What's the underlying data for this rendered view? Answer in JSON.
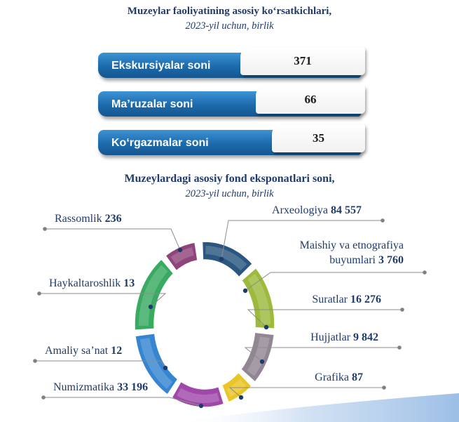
{
  "header": {
    "title": "Muzeylar faoliyatining asosiy koʻrsatkichlari,",
    "subtitle": "2023-yil uchun, birlik"
  },
  "stats": [
    {
      "label": "Ekskursiyalar soni",
      "value": "371"
    },
    {
      "label": "Ma’ruzalar soni",
      "value": "66"
    },
    {
      "label": "Koʻrgazmalar soni",
      "value": "35"
    }
  ],
  "chart_data": {
    "type": "pie",
    "title": "Muzeylardagi asosiy fond eksponatlari soni,",
    "subtitle": "2023-yil uchun, birlik",
    "slices": [
      {
        "name": "Arxeologiya",
        "value": 84557,
        "label": "84 557",
        "color": "#1f4e79"
      },
      {
        "name": "Maishiy va etnografiya buyumlari",
        "value": 3760,
        "label": "3 760",
        "color": "#98b732"
      },
      {
        "name": "Suratlar",
        "value": 16276,
        "label": "16 276",
        "color": "#8d7f8f"
      },
      {
        "name": "Hujjatlar",
        "value": 9842,
        "label": "9 842",
        "color": "#8d7f8f"
      },
      {
        "name": "Grafika",
        "value": 87,
        "label": "87",
        "color": "#e8c21a"
      },
      {
        "name": "Numizmatika",
        "value": 33196,
        "label": "33 196",
        "color": "#9b3fa6"
      },
      {
        "name": "Amaliy sa’nat",
        "value": 12,
        "label": "12",
        "color": "#2b7fcf"
      },
      {
        "name": "Haykaltaroshlik",
        "value": 13,
        "label": "13",
        "color": "#2ea65a"
      },
      {
        "name": "Rassomlik",
        "value": 236,
        "label": "236",
        "color": "#8a3a74"
      }
    ]
  }
}
